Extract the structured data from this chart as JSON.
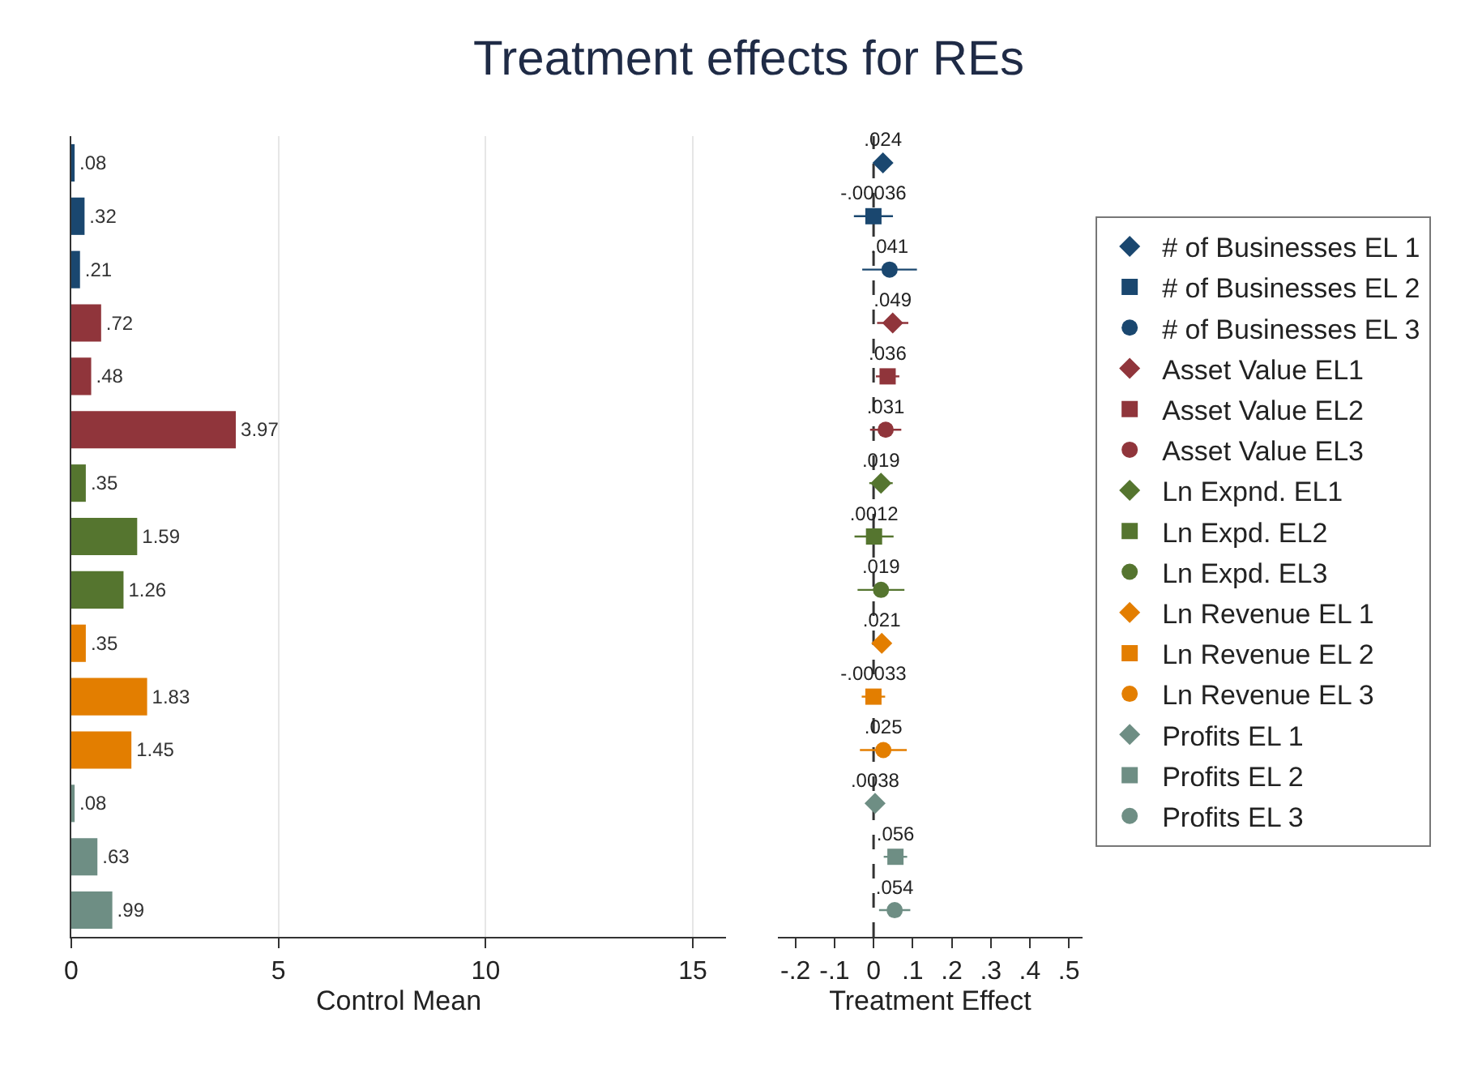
{
  "chart_data": [
    {
      "type": "bar",
      "title": "Treatment effects for REs",
      "orientation": "horizontal",
      "categories": [
        null,
        null,
        null,
        null,
        null,
        null,
        null,
        null,
        null,
        null,
        null,
        null,
        null,
        null,
        null
      ],
      "values": [
        0.08,
        0.32,
        0.21,
        0.72,
        0.48,
        3.97,
        0.35,
        1.59,
        1.26,
        0.35,
        1.83,
        1.45,
        0.08,
        0.63,
        0.99
      ],
      "colors": [
        "#1a476f",
        "#1a476f",
        "#1a476f",
        "#90353b",
        "#90353b",
        "#90353b",
        "#55752f",
        "#55752f",
        "#55752f",
        "#e37e00",
        "#e37e00",
        "#e37e00",
        "#6e8e84",
        "#6e8e84",
        "#6e8e84"
      ],
      "value_labels": [
        ".08",
        ".32",
        ".21",
        ".72",
        ".48",
        "3.97",
        ".35",
        "1.59",
        "1.26",
        ".35",
        "1.83",
        "1.45",
        ".08",
        ".63",
        ".99"
      ],
      "xlim": [
        0,
        15.8
      ],
      "xticks": [
        0,
        5,
        10,
        15
      ],
      "xlabel": "Control Mean",
      "grid": "x",
      "legend": false
    },
    {
      "type": "scatter",
      "orientation": "horizontal",
      "categories": [
        null,
        null,
        null,
        null,
        null,
        null,
        null,
        null,
        null,
        null,
        null,
        null,
        null,
        null,
        null
      ],
      "xlim": [
        -0.245,
        0.535
      ],
      "xticks": [
        {
          "value": -0.2,
          "label": "-.2"
        },
        {
          "value": -0.1,
          "label": "-.1"
        },
        0,
        {
          "value": 0.1,
          "label": ".1"
        },
        {
          "value": 0.2,
          "label": ".2"
        },
        {
          "value": 0.3,
          "label": ".3"
        },
        {
          "value": 0.4,
          "label": ".4"
        },
        {
          "value": 0.5,
          "label": ".5"
        }
      ],
      "xlabel": "Treatment Effect",
      "legend": "right",
      "grid": false,
      "ref_lines": [
        {
          "axis": "x",
          "value": 0,
          "color": "#333333",
          "line_style": "dashed"
        }
      ],
      "series": [
        {
          "name": "# of Businesses EL 1",
          "color": "#1a476f",
          "marker": "diamond",
          "values": [
            0.024,
            null,
            null,
            null,
            null,
            null,
            null,
            null,
            null,
            null,
            null,
            null,
            null,
            null,
            null
          ],
          "errors": [
            0.02,
            null,
            null,
            null,
            null,
            null,
            null,
            null,
            null,
            null,
            null,
            null,
            null,
            null,
            null
          ],
          "value_labels": [
            ".024",
            null,
            null,
            null,
            null,
            null,
            null,
            null,
            null,
            null,
            null,
            null,
            null,
            null,
            null
          ]
        },
        {
          "name": "# of Businesses EL 2",
          "color": "#1a476f",
          "marker": "square",
          "values": [
            null,
            -0.00036,
            null,
            null,
            null,
            null,
            null,
            null,
            null,
            null,
            null,
            null,
            null,
            null,
            null
          ],
          "errors": [
            null,
            0.05,
            null,
            null,
            null,
            null,
            null,
            null,
            null,
            null,
            null,
            null,
            null,
            null,
            null
          ],
          "value_labels": [
            null,
            "-.00036",
            null,
            null,
            null,
            null,
            null,
            null,
            null,
            null,
            null,
            null,
            null,
            null,
            null
          ]
        },
        {
          "name": "# of Businesses EL 3",
          "color": "#1a476f",
          "marker": "circle",
          "values": [
            null,
            null,
            0.041,
            null,
            null,
            null,
            null,
            null,
            null,
            null,
            null,
            null,
            null,
            null,
            null
          ],
          "errors": [
            null,
            null,
            0.07,
            null,
            null,
            null,
            null,
            null,
            null,
            null,
            null,
            null,
            null,
            null,
            null
          ],
          "value_labels": [
            null,
            null,
            ".041",
            null,
            null,
            null,
            null,
            null,
            null,
            null,
            null,
            null,
            null,
            null,
            null
          ]
        },
        {
          "name": "Asset Value EL1",
          "color": "#90353b",
          "marker": "diamond",
          "values": [
            null,
            null,
            null,
            0.049,
            null,
            null,
            null,
            null,
            null,
            null,
            null,
            null,
            null,
            null,
            null
          ],
          "errors": [
            null,
            null,
            null,
            0.04,
            null,
            null,
            null,
            null,
            null,
            null,
            null,
            null,
            null,
            null,
            null
          ],
          "value_labels": [
            null,
            null,
            null,
            ".049",
            null,
            null,
            null,
            null,
            null,
            null,
            null,
            null,
            null,
            null,
            null
          ]
        },
        {
          "name": "Asset Value EL2",
          "color": "#90353b",
          "marker": "square",
          "values": [
            null,
            null,
            null,
            null,
            0.036,
            null,
            null,
            null,
            null,
            null,
            null,
            null,
            null,
            null,
            null
          ],
          "errors": [
            null,
            null,
            null,
            null,
            0.03,
            null,
            null,
            null,
            null,
            null,
            null,
            null,
            null,
            null,
            null
          ],
          "value_labels": [
            null,
            null,
            null,
            null,
            ".036",
            null,
            null,
            null,
            null,
            null,
            null,
            null,
            null,
            null,
            null
          ]
        },
        {
          "name": "Asset Value EL3",
          "color": "#90353b",
          "marker": "circle",
          "values": [
            null,
            null,
            null,
            null,
            null,
            0.031,
            null,
            null,
            null,
            null,
            null,
            null,
            null,
            null,
            null
          ],
          "errors": [
            null,
            null,
            null,
            null,
            null,
            0.04,
            null,
            null,
            null,
            null,
            null,
            null,
            null,
            null,
            null
          ],
          "value_labels": [
            null,
            null,
            null,
            null,
            null,
            ".031",
            null,
            null,
            null,
            null,
            null,
            null,
            null,
            null,
            null
          ]
        },
        {
          "name": "Ln Expnd. EL1",
          "color": "#55752f",
          "marker": "diamond",
          "values": [
            null,
            null,
            null,
            null,
            null,
            null,
            0.019,
            null,
            null,
            null,
            null,
            null,
            null,
            null,
            null
          ],
          "errors": [
            null,
            null,
            null,
            null,
            null,
            null,
            0.03,
            null,
            null,
            null,
            null,
            null,
            null,
            null,
            null
          ],
          "value_labels": [
            null,
            null,
            null,
            null,
            null,
            null,
            ".019",
            null,
            null,
            null,
            null,
            null,
            null,
            null,
            null
          ]
        },
        {
          "name": "Ln Expd. EL2",
          "color": "#55752f",
          "marker": "square",
          "values": [
            null,
            null,
            null,
            null,
            null,
            null,
            null,
            0.0012,
            null,
            null,
            null,
            null,
            null,
            null,
            null
          ],
          "errors": [
            null,
            null,
            null,
            null,
            null,
            null,
            null,
            0.05,
            null,
            null,
            null,
            null,
            null,
            null,
            null
          ],
          "value_labels": [
            null,
            null,
            null,
            null,
            null,
            null,
            null,
            ".0012",
            null,
            null,
            null,
            null,
            null,
            null,
            null
          ]
        },
        {
          "name": "Ln Expd. EL3",
          "color": "#55752f",
          "marker": "circle",
          "values": [
            null,
            null,
            null,
            null,
            null,
            null,
            null,
            null,
            0.019,
            null,
            null,
            null,
            null,
            null,
            null
          ],
          "errors": [
            null,
            null,
            null,
            null,
            null,
            null,
            null,
            null,
            0.06,
            null,
            null,
            null,
            null,
            null,
            null
          ],
          "value_labels": [
            null,
            null,
            null,
            null,
            null,
            null,
            null,
            null,
            ".019",
            null,
            null,
            null,
            null,
            null,
            null
          ]
        },
        {
          "name": "Ln Revenue EL 1",
          "color": "#e37e00",
          "marker": "diamond",
          "values": [
            null,
            null,
            null,
            null,
            null,
            null,
            null,
            null,
            null,
            0.021,
            null,
            null,
            null,
            null,
            null
          ],
          "errors": [
            null,
            null,
            null,
            null,
            null,
            null,
            null,
            null,
            null,
            0.02,
            null,
            null,
            null,
            null,
            null
          ],
          "value_labels": [
            null,
            null,
            null,
            null,
            null,
            null,
            null,
            null,
            null,
            ".021",
            null,
            null,
            null,
            null,
            null
          ]
        },
        {
          "name": "Ln Revenue EL 2",
          "color": "#e37e00",
          "marker": "square",
          "values": [
            null,
            null,
            null,
            null,
            null,
            null,
            null,
            null,
            null,
            null,
            -0.00033,
            null,
            null,
            null,
            null
          ],
          "errors": [
            null,
            null,
            null,
            null,
            null,
            null,
            null,
            null,
            null,
            null,
            0.03,
            null,
            null,
            null,
            null
          ],
          "value_labels": [
            null,
            null,
            null,
            null,
            null,
            null,
            null,
            null,
            null,
            null,
            "-.00033",
            null,
            null,
            null,
            null
          ]
        },
        {
          "name": "Ln Revenue EL 3",
          "color": "#e37e00",
          "marker": "circle",
          "values": [
            null,
            null,
            null,
            null,
            null,
            null,
            null,
            null,
            null,
            null,
            null,
            0.025,
            null,
            null,
            null
          ],
          "errors": [
            null,
            null,
            null,
            null,
            null,
            null,
            null,
            null,
            null,
            null,
            null,
            0.06,
            null,
            null,
            null
          ],
          "value_labels": [
            null,
            null,
            null,
            null,
            null,
            null,
            null,
            null,
            null,
            null,
            null,
            ".025",
            null,
            null,
            null
          ]
        },
        {
          "name": "Profits EL 1",
          "color": "#6e8e84",
          "marker": "diamond",
          "values": [
            null,
            null,
            null,
            null,
            null,
            null,
            null,
            null,
            null,
            null,
            null,
            null,
            0.0038,
            null,
            null
          ],
          "errors": [
            null,
            null,
            null,
            null,
            null,
            null,
            null,
            null,
            null,
            null,
            null,
            null,
            0.02,
            null,
            null
          ],
          "value_labels": [
            null,
            null,
            null,
            null,
            null,
            null,
            null,
            null,
            null,
            null,
            null,
            null,
            ".0038",
            null,
            null
          ]
        },
        {
          "name": "Profits EL 2",
          "color": "#6e8e84",
          "marker": "square",
          "values": [
            null,
            null,
            null,
            null,
            null,
            null,
            null,
            null,
            null,
            null,
            null,
            null,
            null,
            0.056,
            null
          ],
          "errors": [
            null,
            null,
            null,
            null,
            null,
            null,
            null,
            null,
            null,
            null,
            null,
            null,
            null,
            0.03,
            null
          ],
          "value_labels": [
            null,
            null,
            null,
            null,
            null,
            null,
            null,
            null,
            null,
            null,
            null,
            null,
            null,
            ".056",
            null
          ]
        },
        {
          "name": "Profits EL 3",
          "color": "#6e8e84",
          "marker": "circle",
          "values": [
            null,
            null,
            null,
            null,
            null,
            null,
            null,
            null,
            null,
            null,
            null,
            null,
            null,
            null,
            0.054
          ],
          "errors": [
            null,
            null,
            null,
            null,
            null,
            null,
            null,
            null,
            null,
            null,
            null,
            null,
            null,
            null,
            0.04
          ],
          "value_labels": [
            null,
            null,
            null,
            null,
            null,
            null,
            null,
            null,
            null,
            null,
            null,
            null,
            null,
            null,
            ".054"
          ]
        }
      ]
    }
  ]
}
